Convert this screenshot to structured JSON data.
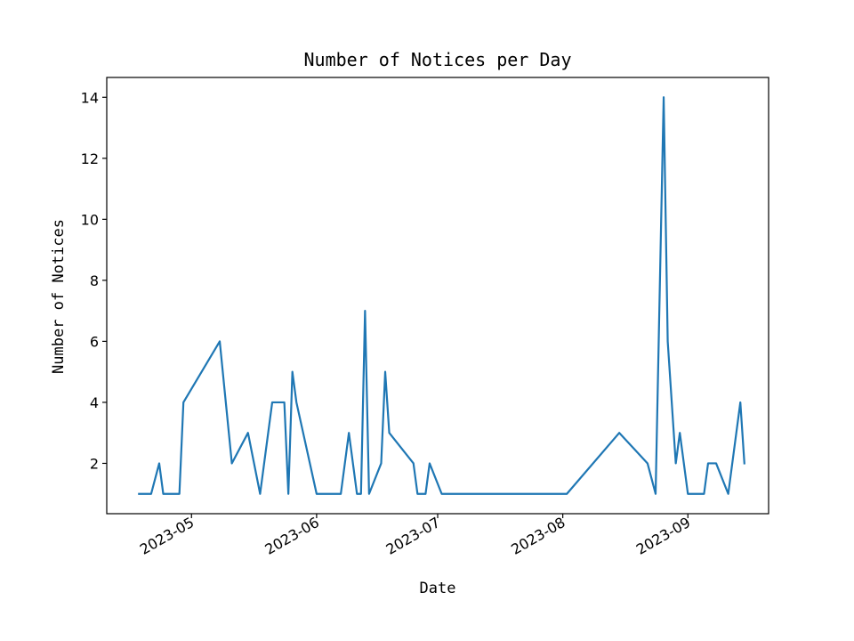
{
  "chart_data": {
    "type": "line",
    "title": "Number of Notices per Day",
    "xlabel": "Date",
    "ylabel": "Number of Notices",
    "grid": false,
    "legend": "none",
    "line_color": "#1f77b4",
    "x_is_date": true,
    "xlim": [
      "2023-04-10",
      "2023-09-21"
    ],
    "ylim": [
      0.35,
      14.65
    ],
    "x_ticks": [
      {
        "date": "2023-05-01",
        "label": "2023-05"
      },
      {
        "date": "2023-06-01",
        "label": "2023-06"
      },
      {
        "date": "2023-07-01",
        "label": "2023-07"
      },
      {
        "date": "2023-08-01",
        "label": "2023-08"
      },
      {
        "date": "2023-09-01",
        "label": "2023-09"
      }
    ],
    "y_ticks": [
      2,
      4,
      6,
      8,
      10,
      12,
      14
    ],
    "series": [
      {
        "x": [
          "2023-04-18",
          "2023-04-21",
          "2023-04-23",
          "2023-04-24",
          "2023-04-28",
          "2023-04-29",
          "2023-05-08",
          "2023-05-11",
          "2023-05-15",
          "2023-05-18",
          "2023-05-21",
          "2023-05-24",
          "2023-05-25",
          "2023-05-26",
          "2023-05-27",
          "2023-06-01",
          "2023-06-07",
          "2023-06-09",
          "2023-06-11",
          "2023-06-12",
          "2023-06-13",
          "2023-06-14",
          "2023-06-17",
          "2023-06-18",
          "2023-06-19",
          "2023-06-25",
          "2023-06-26",
          "2023-06-28",
          "2023-06-29",
          "2023-07-02",
          "2023-08-02",
          "2023-08-15",
          "2023-08-22",
          "2023-08-24",
          "2023-08-26",
          "2023-08-27",
          "2023-08-29",
          "2023-08-30",
          "2023-09-01",
          "2023-09-05",
          "2023-09-06",
          "2023-09-08",
          "2023-09-11",
          "2023-09-14",
          "2023-09-15"
        ],
        "y": [
          1,
          1,
          2,
          1,
          1,
          4,
          6,
          2,
          3,
          1,
          4,
          4,
          1,
          5,
          4,
          1,
          1,
          3,
          1,
          1,
          7,
          1,
          2,
          5,
          3,
          2,
          1,
          1,
          2,
          1,
          1,
          3,
          2,
          1,
          14,
          6,
          2,
          3,
          1,
          1,
          2,
          2,
          1,
          4,
          2
        ]
      }
    ]
  }
}
